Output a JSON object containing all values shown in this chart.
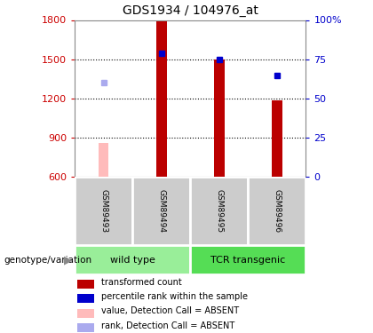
{
  "title": "GDS1934 / 104976_at",
  "samples": [
    "GSM89493",
    "GSM89494",
    "GSM89495",
    "GSM89496"
  ],
  "groups": [
    {
      "label": "wild type",
      "samples": [
        "GSM89493",
        "GSM89494"
      ],
      "color": "#99ee99"
    },
    {
      "label": "TCR transgenic",
      "samples": [
        "GSM89495",
        "GSM89496"
      ],
      "color": "#55dd55"
    }
  ],
  "bar_values": [
    null,
    1790,
    1495,
    1185
  ],
  "bar_color": "#bb0000",
  "absent_bar_values": [
    860,
    null,
    null,
    null
  ],
  "absent_bar_color": "#ffbbbb",
  "rank_values": [
    null,
    1545,
    1500,
    1375
  ],
  "rank_color": "#0000cc",
  "absent_rank_values": [
    1320,
    null,
    null,
    null
  ],
  "absent_rank_color": "#aaaaee",
  "ylim_left": [
    600,
    1800
  ],
  "ylim_right": [
    0,
    100
  ],
  "yticks_left": [
    600,
    900,
    1200,
    1500,
    1800
  ],
  "yticks_right": [
    0,
    25,
    50,
    75,
    100
  ],
  "left_axis_color": "#cc0000",
  "right_axis_color": "#0000cc",
  "bar_width": 0.18,
  "legend_items": [
    {
      "label": "transformed count",
      "color": "#bb0000"
    },
    {
      "label": "percentile rank within the sample",
      "color": "#0000cc"
    },
    {
      "label": "value, Detection Call = ABSENT",
      "color": "#ffbbbb"
    },
    {
      "label": "rank, Detection Call = ABSENT",
      "color": "#aaaaee"
    }
  ],
  "annotation_label": "genotype/variation",
  "annotation_color": "#888888",
  "bg_color": "#ffffff",
  "plot_bg": "#ffffff",
  "grid_color": "#000000",
  "sample_box_color": "#cccccc",
  "sample_box_edge": "#ffffff"
}
